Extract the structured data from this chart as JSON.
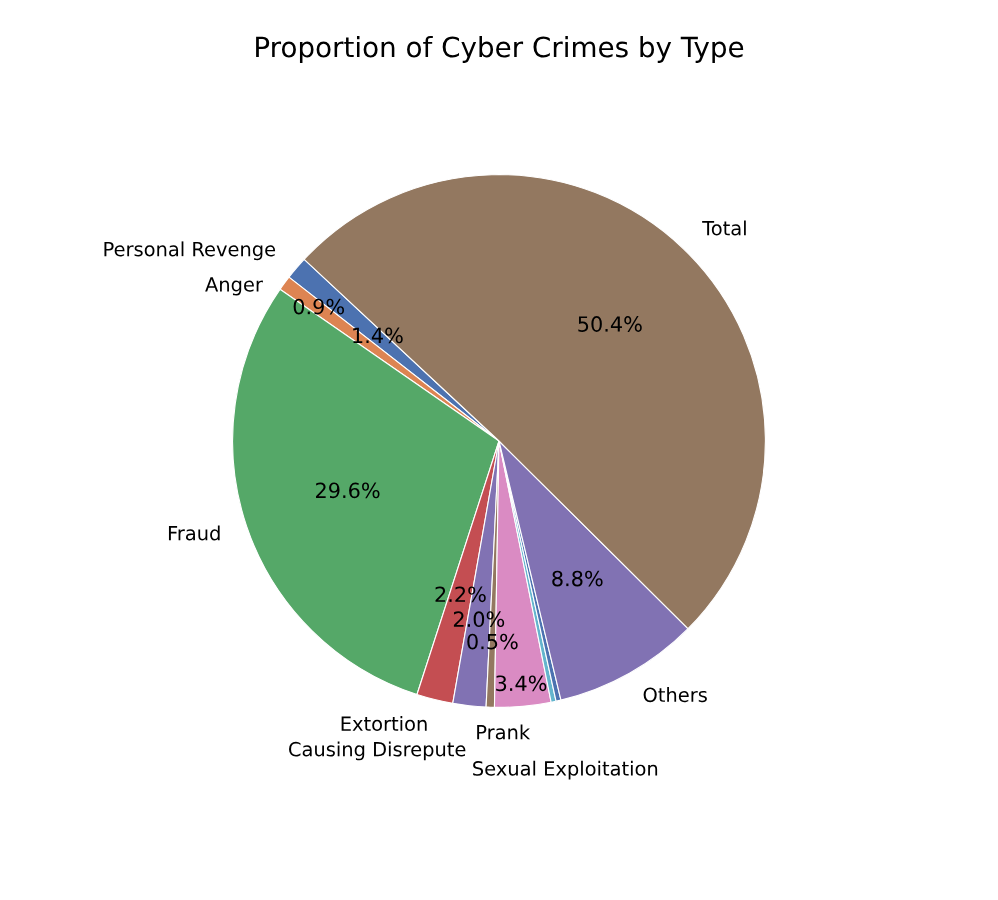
{
  "chart_data": {
    "type": "pie",
    "title": "Proportion of Cyber Crimes by Type",
    "categories": [
      "Personal Revenge",
      "Anger",
      "Fraud",
      "Extortion",
      "Causing Disrepute",
      "Prank",
      "Sexual Exploitation",
      null,
      null,
      "Others",
      "Total"
    ],
    "values": [
      1.4,
      0.9,
      29.6,
      2.2,
      2.0,
      0.5,
      3.4,
      0.3,
      0.3,
      8.8,
      50.4
    ],
    "value_labels": [
      "1.4%",
      "0.9%",
      "29.6%",
      "2.2%",
      "2.0%",
      "0.5%",
      "3.4%",
      null,
      null,
      "8.8%",
      "50.4%"
    ],
    "colors": [
      "#4c72b0",
      "#dd8452",
      "#55a868",
      "#c44e52",
      "#8172b3",
      "#937860",
      "#da8bc3",
      "#64b5cd",
      "#4c72b0",
      "#8172b3",
      "#937860"
    ]
  }
}
